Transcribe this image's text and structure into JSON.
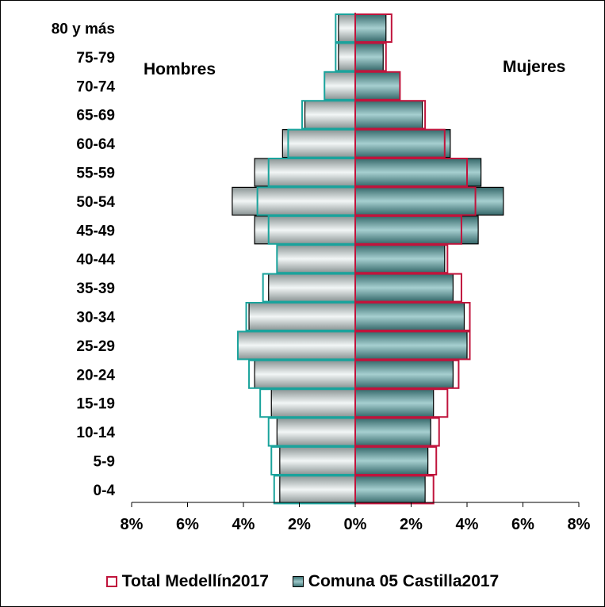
{
  "chart_data": {
    "type": "bar",
    "subtype": "population-pyramid",
    "categories": [
      "80 y más",
      "75-79",
      "70-74",
      "65-69",
      "60-64",
      "55-59",
      "50-54",
      "45-49",
      "40-44",
      "35-39",
      "30-34",
      "25-29",
      "20-24",
      "15-19",
      "10-14",
      "5-9",
      "0-4"
    ],
    "left_label": "Hombres",
    "right_label": "Mujeres",
    "x_tick_labels": [
      "8%",
      "6%",
      "4%",
      "2%",
      "0%",
      "2%",
      "4%",
      "6%",
      "8%"
    ],
    "xlim": [
      -8,
      8
    ],
    "series": [
      {
        "name": "Total Medellín2017",
        "style": "outline",
        "hombres": [
          0.7,
          0.7,
          1.1,
          1.9,
          2.4,
          3.1,
          3.5,
          3.1,
          2.8,
          3.3,
          3.9,
          4.2,
          3.8,
          3.4,
          3.1,
          3.0,
          2.9
        ],
        "mujeres": [
          1.3,
          1.1,
          1.6,
          2.5,
          3.2,
          4.0,
          4.3,
          3.8,
          3.3,
          3.8,
          4.1,
          4.1,
          3.7,
          3.3,
          3.0,
          2.9,
          2.8
        ]
      },
      {
        "name": "Comuna 05 Castilla2017",
        "style": "filled",
        "hombres": [
          0.6,
          0.6,
          1.1,
          1.8,
          2.6,
          3.6,
          4.4,
          3.6,
          2.8,
          3.1,
          3.8,
          4.2,
          3.6,
          3.0,
          2.8,
          2.7,
          2.7
        ],
        "mujeres": [
          1.1,
          1.0,
          1.6,
          2.4,
          3.4,
          4.5,
          5.3,
          4.4,
          3.2,
          3.5,
          3.9,
          4.0,
          3.5,
          2.8,
          2.7,
          2.6,
          2.5
        ]
      }
    ],
    "colors": {
      "total_outline_men": "#1aa39c",
      "total_outline_women": "#c0143c",
      "comuna_men_light": "#e8eeee",
      "comuna_men_dark": "#8a9494",
      "comuna_women_light": "#a6cfd0",
      "comuna_women_dark": "#35686a"
    },
    "legend_position": "bottom",
    "grid": false
  }
}
